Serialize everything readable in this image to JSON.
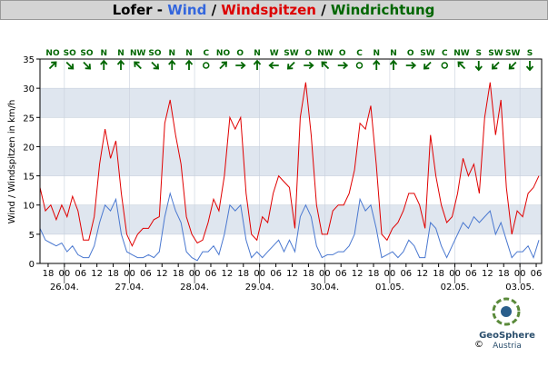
{
  "chart_data": {
    "type": "line",
    "title_parts": [
      "Lofer - ",
      "Wind",
      " / ",
      "Windspitzen",
      " / ",
      "Windrichtung"
    ],
    "title_colors": [
      "#000000",
      "#3366dd",
      "#000000",
      "#dd0000",
      "#000000",
      "#006600"
    ],
    "ylabel": "Wind / Windspitzen in km/h",
    "x": [
      -9,
      -7,
      -5,
      -3,
      -1,
      1,
      3,
      5,
      7,
      9,
      11,
      13,
      15,
      17,
      19,
      21,
      23,
      25,
      27,
      29,
      31,
      33,
      35,
      37,
      39,
      41,
      43,
      45,
      47,
      49,
      51,
      53,
      55,
      57,
      59,
      61,
      63,
      65,
      67,
      69,
      71,
      73,
      75,
      77,
      79,
      81,
      83,
      85,
      87,
      89,
      91,
      93,
      95,
      97,
      99,
      101,
      103,
      105,
      107,
      109,
      111,
      113,
      115,
      117,
      119,
      121,
      123,
      125,
      127,
      129,
      131,
      133,
      135,
      137,
      139,
      141,
      143,
      145,
      147,
      149,
      151,
      153,
      155,
      157,
      159,
      161,
      163,
      165,
      167,
      169,
      171,
      173,
      175
    ],
    "xlim": [
      -9,
      176
    ],
    "xticks": [
      {
        "value": -6,
        "label": "18"
      },
      {
        "value": 0,
        "label": "00"
      },
      {
        "value": 6,
        "label": "06"
      },
      {
        "value": 12,
        "label": "12"
      },
      {
        "value": 18,
        "label": "18"
      },
      {
        "value": 24,
        "label": "00"
      },
      {
        "value": 30,
        "label": "06"
      },
      {
        "value": 36,
        "label": "12"
      },
      {
        "value": 42,
        "label": "18"
      },
      {
        "value": 48,
        "label": "00"
      },
      {
        "value": 54,
        "label": "06"
      },
      {
        "value": 60,
        "label": "12"
      },
      {
        "value": 66,
        "label": "18"
      },
      {
        "value": 72,
        "label": "00"
      },
      {
        "value": 78,
        "label": "06"
      },
      {
        "value": 84,
        "label": "12"
      },
      {
        "value": 90,
        "label": "18"
      },
      {
        "value": 96,
        "label": "00"
      },
      {
        "value": 102,
        "label": "06"
      },
      {
        "value": 108,
        "label": "12"
      },
      {
        "value": 114,
        "label": "18"
      },
      {
        "value": 120,
        "label": "00"
      },
      {
        "value": 126,
        "label": "06"
      },
      {
        "value": 132,
        "label": "12"
      },
      {
        "value": 138,
        "label": "18"
      },
      {
        "value": 144,
        "label": "00"
      },
      {
        "value": 150,
        "label": "06"
      },
      {
        "value": 156,
        "label": "12"
      },
      {
        "value": 162,
        "label": "18"
      },
      {
        "value": 168,
        "label": "00"
      },
      {
        "value": 174,
        "label": "06"
      }
    ],
    "xdates": [
      {
        "value": 0,
        "label": "26.04."
      },
      {
        "value": 24,
        "label": "27.04."
      },
      {
        "value": 48,
        "label": "28.04."
      },
      {
        "value": 72,
        "label": "29.04."
      },
      {
        "value": 96,
        "label": "30.04."
      },
      {
        "value": 120,
        "label": "01.05."
      },
      {
        "value": 144,
        "label": "02.05."
      },
      {
        "value": 168,
        "label": "03.05."
      }
    ],
    "ylim": [
      0,
      35
    ],
    "yticks": [
      0,
      5,
      10,
      15,
      20,
      25,
      30,
      35
    ],
    "grid": true,
    "series": [
      {
        "name": "Windspitzen",
        "color": "#e00000",
        "values": [
          13,
          9,
          10,
          7.5,
          10,
          8,
          11.5,
          9,
          4,
          4,
          8,
          17,
          23,
          18,
          21,
          12,
          5,
          3,
          5,
          6,
          6,
          7.5,
          8,
          24,
          28,
          22,
          17,
          8,
          5,
          3.5,
          4,
          7,
          11,
          9,
          15,
          25,
          23,
          25,
          12,
          5,
          4,
          8,
          7,
          12,
          15,
          14,
          13,
          6,
          25,
          31,
          22,
          10,
          5,
          5,
          9,
          10,
          10,
          12,
          16,
          24,
          23,
          27,
          17,
          5,
          4,
          6,
          7,
          9,
          12,
          12,
          10,
          6,
          22,
          15,
          10,
          7,
          8,
          12,
          18,
          15,
          17,
          12,
          25,
          31,
          22,
          28,
          13,
          5,
          9,
          8,
          12,
          13,
          15
        ]
      },
      {
        "name": "Wind",
        "color": "#4a78d0",
        "values": [
          6,
          4,
          3.5,
          3,
          3.5,
          2,
          3,
          1.5,
          1,
          1,
          3,
          7,
          10,
          9,
          11,
          5,
          2,
          1.5,
          1,
          1,
          1.5,
          1,
          2,
          8,
          12,
          9,
          7,
          2,
          1,
          0.5,
          2,
          2,
          3,
          1.5,
          5,
          10,
          9,
          10,
          4,
          1,
          2,
          1,
          2,
          3,
          4,
          2,
          4,
          2,
          8,
          10,
          8,
          3,
          1,
          1.5,
          1.5,
          2,
          2,
          3,
          5,
          11,
          9,
          10,
          6,
          1,
          1.5,
          2,
          1,
          2,
          4,
          3,
          1,
          1,
          7,
          6,
          3,
          1,
          3,
          5,
          7,
          6,
          8,
          7,
          8,
          9,
          5,
          7,
          4,
          1,
          2,
          2,
          3,
          1,
          4
        ]
      }
    ],
    "directions": [
      "NO",
      "SO",
      "SO",
      "N",
      "N",
      "NW",
      "SO",
      "N",
      "N",
      "C",
      "NO",
      "O",
      "N",
      "W",
      "SW",
      "O",
      "NW",
      "O",
      "C",
      "N",
      "N",
      "O",
      "SW",
      "C",
      "NW",
      "S",
      "SW",
      "SW",
      "S"
    ],
    "direction_color": "#006600",
    "logo": {
      "line1": "GeoSphere",
      "line2": "Austria",
      "copyright": "©"
    }
  }
}
